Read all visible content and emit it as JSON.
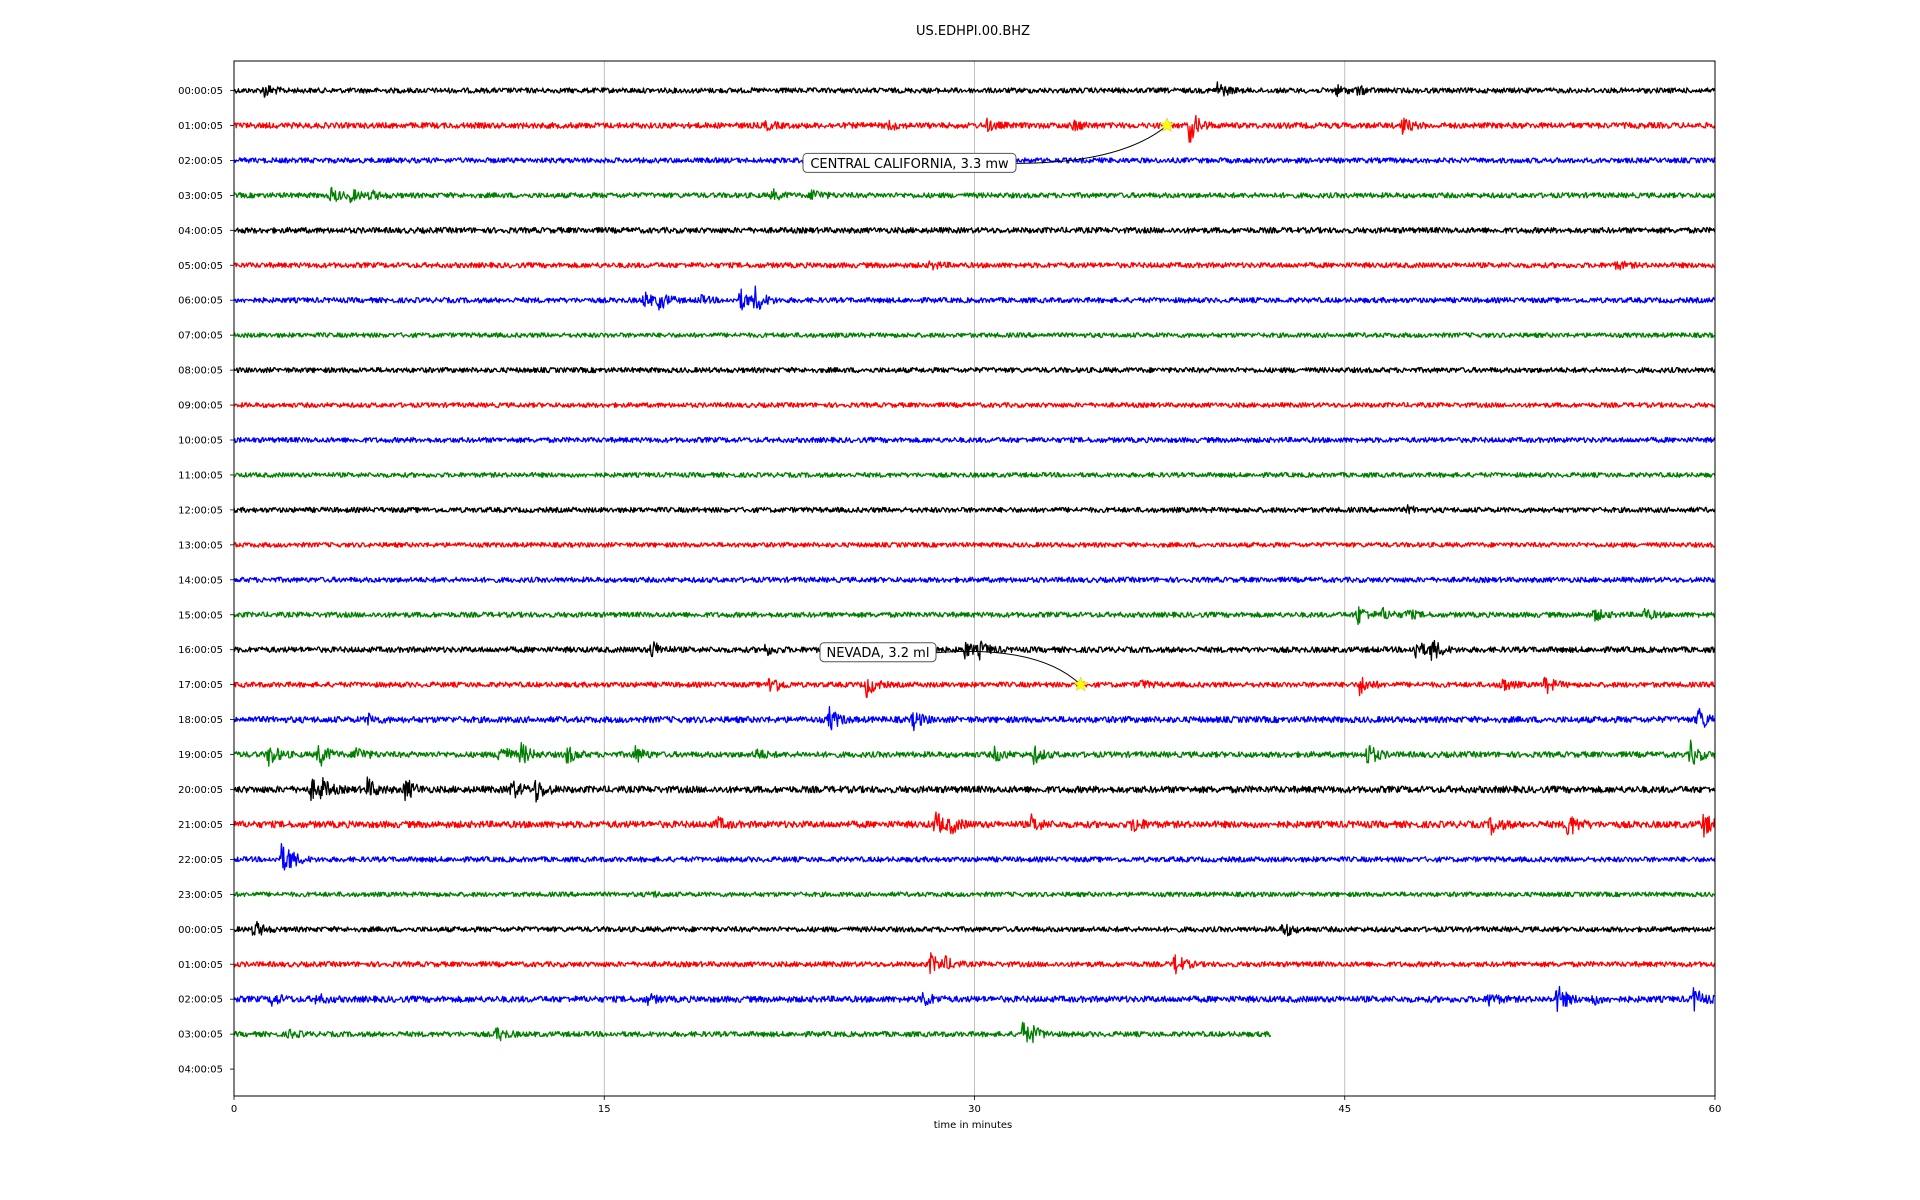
{
  "chart_data": {
    "type": "line",
    "title": "US.EDHPI.00.BHZ",
    "xlabel": "time in minutes",
    "ylabel": "",
    "xlim": [
      0,
      60
    ],
    "x_ticks": [
      0,
      15,
      30,
      45,
      60
    ],
    "x_tick_labels": [
      "0",
      "15",
      "30",
      "45",
      "60"
    ],
    "grid": "vertical",
    "color_cycle": [
      "#000000",
      "#ff0000",
      "#0000ff",
      "#008000"
    ],
    "row_labels": [
      "00:00:05",
      "01:00:05",
      "02:00:05",
      "03:00:05",
      "04:00:05",
      "05:00:05",
      "06:00:05",
      "07:00:05",
      "08:00:05",
      "09:00:05",
      "10:00:05",
      "11:00:05",
      "12:00:05",
      "13:00:05",
      "14:00:05",
      "15:00:05",
      "16:00:05",
      "17:00:05",
      "18:00:05",
      "19:00:05",
      "20:00:05",
      "21:00:05",
      "22:00:05",
      "23:00:05",
      "00:00:05",
      "01:00:05",
      "02:00:05",
      "03:00:05",
      "04:00:05"
    ],
    "traces": [
      {
        "row": 0,
        "end": 60,
        "noise": 1.0,
        "events": [
          [
            1.2,
            7
          ],
          [
            39.8,
            9
          ],
          [
            44.6,
            5
          ],
          [
            45.5,
            4
          ]
        ]
      },
      {
        "row": 1,
        "end": 60,
        "noise": 1.1,
        "events": [
          [
            21.5,
            4
          ],
          [
            26.5,
            4
          ],
          [
            30.5,
            5
          ],
          [
            34.0,
            5
          ],
          [
            38.7,
            17
          ],
          [
            47.3,
            8
          ]
        ]
      },
      {
        "row": 2,
        "end": 60,
        "noise": 1.0,
        "events": []
      },
      {
        "row": 3,
        "end": 60,
        "noise": 1.0,
        "events": [
          [
            3.9,
            8
          ],
          [
            4.7,
            6
          ],
          [
            5.5,
            5
          ],
          [
            21.8,
            5
          ],
          [
            23.4,
            7
          ]
        ]
      },
      {
        "row": 4,
        "end": 60,
        "noise": 1.1,
        "events": []
      },
      {
        "row": 5,
        "end": 60,
        "noise": 1.0,
        "events": [
          [
            28.2,
            4
          ],
          [
            56.0,
            4
          ]
        ]
      },
      {
        "row": 6,
        "end": 60,
        "noise": 1.0,
        "events": [
          [
            16.6,
            8
          ],
          [
            17.2,
            10
          ],
          [
            18.8,
            5
          ],
          [
            20.5,
            11
          ],
          [
            21.1,
            14
          ]
        ]
      },
      {
        "row": 7,
        "end": 60,
        "noise": 0.9,
        "events": []
      },
      {
        "row": 8,
        "end": 60,
        "noise": 1.0,
        "events": []
      },
      {
        "row": 9,
        "end": 60,
        "noise": 0.9,
        "events": []
      },
      {
        "row": 10,
        "end": 60,
        "noise": 1.0,
        "events": []
      },
      {
        "row": 11,
        "end": 60,
        "noise": 0.9,
        "events": []
      },
      {
        "row": 12,
        "end": 60,
        "noise": 1.0,
        "events": [
          [
            47.5,
            3
          ]
        ]
      },
      {
        "row": 13,
        "end": 60,
        "noise": 0.9,
        "events": []
      },
      {
        "row": 14,
        "end": 60,
        "noise": 1.0,
        "events": []
      },
      {
        "row": 15,
        "end": 60,
        "noise": 1.0,
        "events": [
          [
            45.5,
            10
          ],
          [
            46.5,
            6
          ],
          [
            47.5,
            5
          ],
          [
            55.1,
            6
          ],
          [
            57.1,
            6
          ]
        ]
      },
      {
        "row": 16,
        "end": 60,
        "noise": 1.1,
        "events": [
          [
            16.9,
            9
          ],
          [
            21.5,
            5
          ],
          [
            29.6,
            8
          ],
          [
            30.2,
            8
          ],
          [
            47.8,
            11
          ],
          [
            48.5,
            12
          ]
        ]
      },
      {
        "row": 17,
        "end": 60,
        "noise": 1.0,
        "events": [
          [
            21.7,
            12
          ],
          [
            25.6,
            12
          ],
          [
            36.7,
            4
          ],
          [
            45.6,
            10
          ],
          [
            51.3,
            8
          ],
          [
            53.1,
            9
          ]
        ]
      },
      {
        "row": 18,
        "end": 60,
        "noise": 1.2,
        "events": [
          [
            5.4,
            5
          ],
          [
            24.1,
            12
          ],
          [
            27.5,
            9
          ],
          [
            59.3,
            13
          ]
        ]
      },
      {
        "row": 19,
        "end": 60,
        "noise": 1.1,
        "events": [
          [
            1.4,
            12
          ],
          [
            3.4,
            14
          ],
          [
            4.9,
            9
          ],
          [
            10.7,
            13
          ],
          [
            11.6,
            12
          ],
          [
            13.4,
            11
          ],
          [
            16.2,
            9
          ],
          [
            21.1,
            6
          ],
          [
            30.8,
            7
          ],
          [
            32.4,
            8
          ],
          [
            45.9,
            12
          ],
          [
            59.0,
            12
          ]
        ]
      },
      {
        "row": 20,
        "end": 60,
        "noise": 1.3,
        "events": [
          [
            3.1,
            10
          ],
          [
            3.5,
            12
          ],
          [
            5.4,
            10
          ],
          [
            6.9,
            12
          ],
          [
            11.2,
            10
          ],
          [
            12.2,
            12
          ]
        ]
      },
      {
        "row": 21,
        "end": 60,
        "noise": 1.3,
        "events": [
          [
            19.5,
            7
          ],
          [
            28.4,
            13
          ],
          [
            29.0,
            9
          ],
          [
            32.3,
            8
          ],
          [
            36.4,
            8
          ],
          [
            50.9,
            9
          ],
          [
            54.0,
            14
          ],
          [
            59.5,
            12
          ]
        ]
      },
      {
        "row": 22,
        "end": 60,
        "noise": 1.0,
        "events": [
          [
            1.9,
            15
          ],
          [
            2.2,
            12
          ]
        ]
      },
      {
        "row": 23,
        "end": 60,
        "noise": 0.9,
        "events": [
          [
            16.8,
            3
          ]
        ]
      },
      {
        "row": 24,
        "end": 60,
        "noise": 1.0,
        "events": [
          [
            0.8,
            9
          ],
          [
            42.5,
            8
          ]
        ]
      },
      {
        "row": 25,
        "end": 60,
        "noise": 1.0,
        "events": [
          [
            28.2,
            10
          ],
          [
            28.7,
            9
          ],
          [
            38.1,
            11
          ]
        ]
      },
      {
        "row": 26,
        "end": 60,
        "noise": 1.2,
        "events": [
          [
            1.5,
            6
          ],
          [
            3.3,
            5
          ],
          [
            16.7,
            5
          ],
          [
            27.9,
            8
          ],
          [
            50.8,
            7
          ],
          [
            53.6,
            14
          ],
          [
            55.0,
            5
          ],
          [
            59.1,
            12
          ]
        ]
      },
      {
        "row": 27,
        "end": 42,
        "noise": 1.0,
        "events": [
          [
            2.2,
            4
          ],
          [
            10.6,
            8
          ],
          [
            31.9,
            13
          ],
          [
            32.3,
            9
          ]
        ]
      }
    ],
    "annotations": [
      {
        "text": "CENTRAL CALIFORNIA, 3.3 mw",
        "event_row": 1,
        "event_x": 37.8,
        "label_row": 2
      },
      {
        "text": "NEVADA, 3.2 ml",
        "event_row": 17,
        "event_x": 34.3,
        "label_row": 16
      }
    ]
  }
}
